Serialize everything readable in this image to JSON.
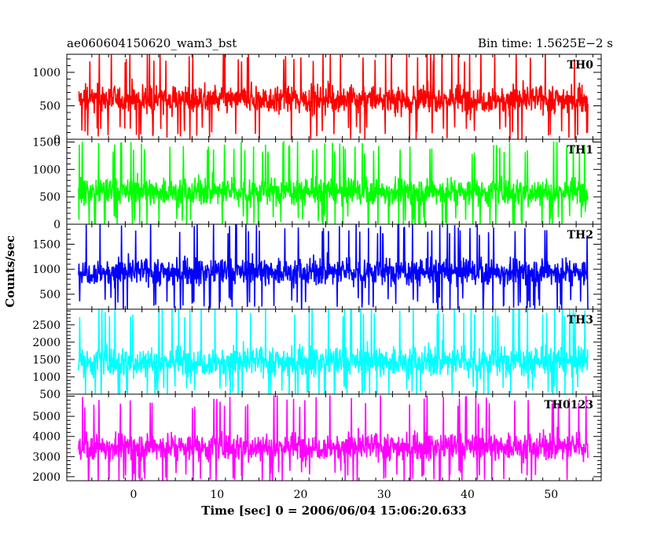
{
  "header": {
    "left": "ae060604150620_wam3_bst",
    "right": "Bin time: 1.5625E−2 s"
  },
  "axes": {
    "xlabel": "Time [sec] 0 = 2006/06/04 15:06:20.633",
    "ylabel": "Counts/sec"
  },
  "chart_data": {
    "type": "line",
    "x_range": [
      -8,
      56
    ],
    "x_ticks": [
      0,
      10,
      20,
      30,
      40,
      50
    ],
    "x_tick_labels": [
      "0",
      "10",
      "20",
      "30",
      "40",
      "50"
    ],
    "description_of_data": "",
    "panels": [
      {
        "name": "TH0",
        "color": "#ff0000",
        "ylim": [
          0,
          1270
        ],
        "y_ticks": [
          0,
          500,
          1000
        ],
        "y_tick_labels": [
          "0",
          "500",
          "1000"
        ],
        "mean": 600,
        "typical_spread": [
          120,
          1200
        ]
      },
      {
        "name": "TH1",
        "color": "#00ff00",
        "ylim": [
          0,
          1550
        ],
        "y_ticks": [
          0,
          500,
          1000,
          1500
        ],
        "y_tick_labels": [
          "0",
          "500",
          "1000",
          "1500"
        ],
        "mean": 600,
        "typical_spread": [
          80,
          1350
        ]
      },
      {
        "name": "TH2",
        "color": "#0000ff",
        "ylim": [
          200,
          1900
        ],
        "y_ticks": [
          500,
          1000,
          1500
        ],
        "y_tick_labels": [
          "500",
          "1000",
          "1500"
        ],
        "mean": 950,
        "typical_spread": [
          350,
          1750
        ]
      },
      {
        "name": "TH3",
        "color": "#00ffff",
        "ylim": [
          500,
          2950
        ],
        "y_ticks": [
          500,
          1000,
          1500,
          2000,
          2500
        ],
        "y_tick_labels": [
          "500",
          "1000",
          "1500",
          "2000",
          "2500"
        ],
        "mean": 1450,
        "typical_spread": [
          600,
          2800
        ]
      },
      {
        "name": "TH0123",
        "color": "#ff00ff",
        "ylim": [
          1800,
          6100
        ],
        "y_ticks": [
          2000,
          3000,
          4000,
          5000
        ],
        "y_tick_labels": [
          "2000",
          "3000",
          "4000",
          "5000"
        ],
        "mean": 3500,
        "typical_spread": [
          2100,
          5600
        ]
      }
    ]
  }
}
